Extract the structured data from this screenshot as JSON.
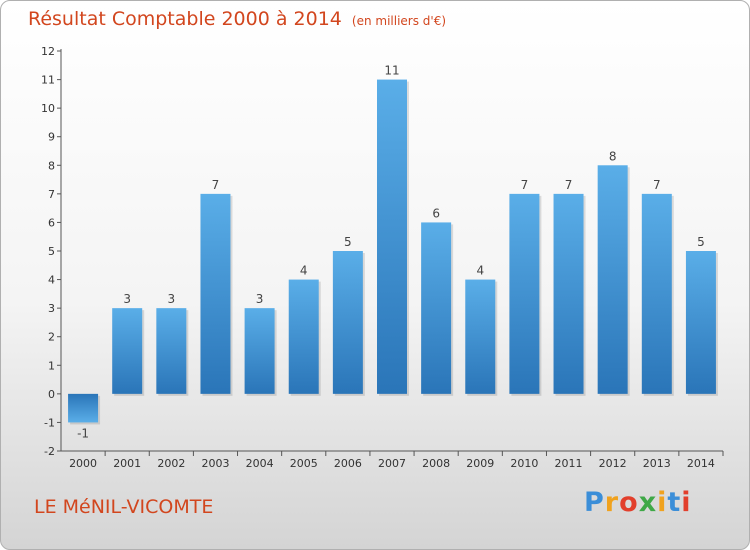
{
  "chart_data": {
    "type": "bar",
    "title": "Résultat Comptable 2000 à 2014",
    "unit_label": "(en milliers d'€)",
    "categories": [
      "2000",
      "2001",
      "2002",
      "2003",
      "2004",
      "2005",
      "2006",
      "2007",
      "2008",
      "2009",
      "2010",
      "2011",
      "2012",
      "2013",
      "2014"
    ],
    "values": [
      -1,
      3,
      3,
      7,
      3,
      4,
      5,
      11,
      6,
      4,
      7,
      7,
      8,
      7,
      5
    ],
    "ylim": [
      -2,
      12
    ],
    "yticks": [
      -2,
      -1,
      0,
      1,
      2,
      3,
      4,
      5,
      6,
      7,
      8,
      9,
      10,
      11,
      12
    ],
    "xlabel": "",
    "ylabel": "",
    "grid": false,
    "bar_color": "#3a8fd0"
  },
  "footer": {
    "city": "LE MéNIL-VICOMTE",
    "brand": "Proxiti",
    "brand_colors": [
      "#3b8ed8",
      "#f0a21e",
      "#e23f2c",
      "#3fa847",
      "#f0a21e",
      "#3b8ed8",
      "#e23f2c"
    ]
  },
  "colors": {
    "accent": "#d2461e"
  }
}
